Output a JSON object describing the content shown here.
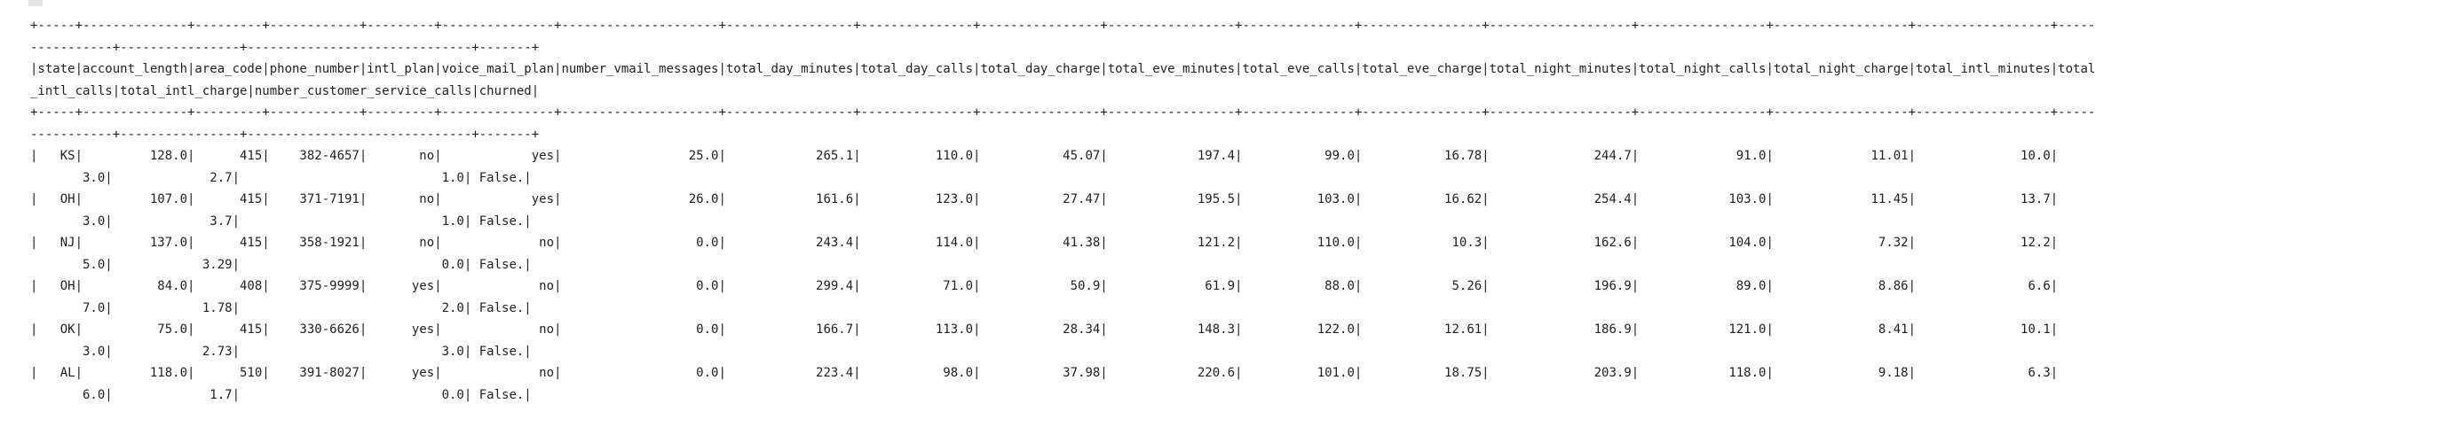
{
  "output": {
    "lines": [
      "+-----+--------------+---------+------------+---------+---------------+---------------------+-----------------+---------------+----------------+-----------------+---------------+----------------+-------------------+-----------------+------------------+------------------+-----",
      "-----------+----------------+------------------------------+-------+",
      "|state|account_length|area_code|phone_number|intl_plan|voice_mail_plan|number_vmail_messages|total_day_minutes|total_day_calls|total_day_charge|total_eve_minutes|total_eve_calls|total_eve_charge|total_night_minutes|total_night_calls|total_night_charge|total_intl_minutes|total",
      "_intl_calls|total_intl_charge|number_customer_service_calls|churned|",
      "+-----+--------------+---------+------------+---------+---------------+---------------------+-----------------+---------------+----------------+-----------------+---------------+----------------+-------------------+-----------------+------------------+------------------+-----",
      "-----------+----------------+------------------------------+-------+",
      "|   KS|         128.0|      415|    382-4657|       no|            yes|                 25.0|            265.1|          110.0|           45.07|            197.4|           99.0|           16.78|              244.7|             91.0|             11.01|              10.0|",
      "       3.0|             2.7|                           1.0| False.|",
      "|   OH|         107.0|      415|    371-7191|       no|            yes|                 26.0|            161.6|          123.0|           27.47|            195.5|          103.0|           16.62|              254.4|            103.0|             11.45|              13.7|",
      "       3.0|             3.7|                           1.0| False.|",
      "|   NJ|         137.0|      415|    358-1921|       no|             no|                  0.0|            243.4|          114.0|           41.38|            121.2|          110.0|            10.3|              162.6|            104.0|              7.32|              12.2|",
      "       5.0|            3.29|                           0.0| False.|",
      "|   OH|          84.0|      408|    375-9999|      yes|             no|                  0.0|            299.4|           71.0|            50.9|             61.9|           88.0|            5.26|              196.9|             89.0|              8.86|               6.6|",
      "       7.0|            1.78|                           2.0| False.|",
      "|   OK|          75.0|      415|    330-6626|      yes|             no|                  0.0|            166.7|          113.0|           28.34|            148.3|          122.0|           12.61|              186.9|            121.0|              8.41|              10.1|",
      "       3.0|            2.73|                           3.0| False.|",
      "|   AL|         118.0|      510|    391-8027|      yes|             no|                  0.0|            223.4|           98.0|           37.98|            220.6|          101.0|           18.75|              203.9|            118.0|              9.18|               6.3|",
      "       6.0|             1.7|                           0.0| False.|"
    ]
  }
}
